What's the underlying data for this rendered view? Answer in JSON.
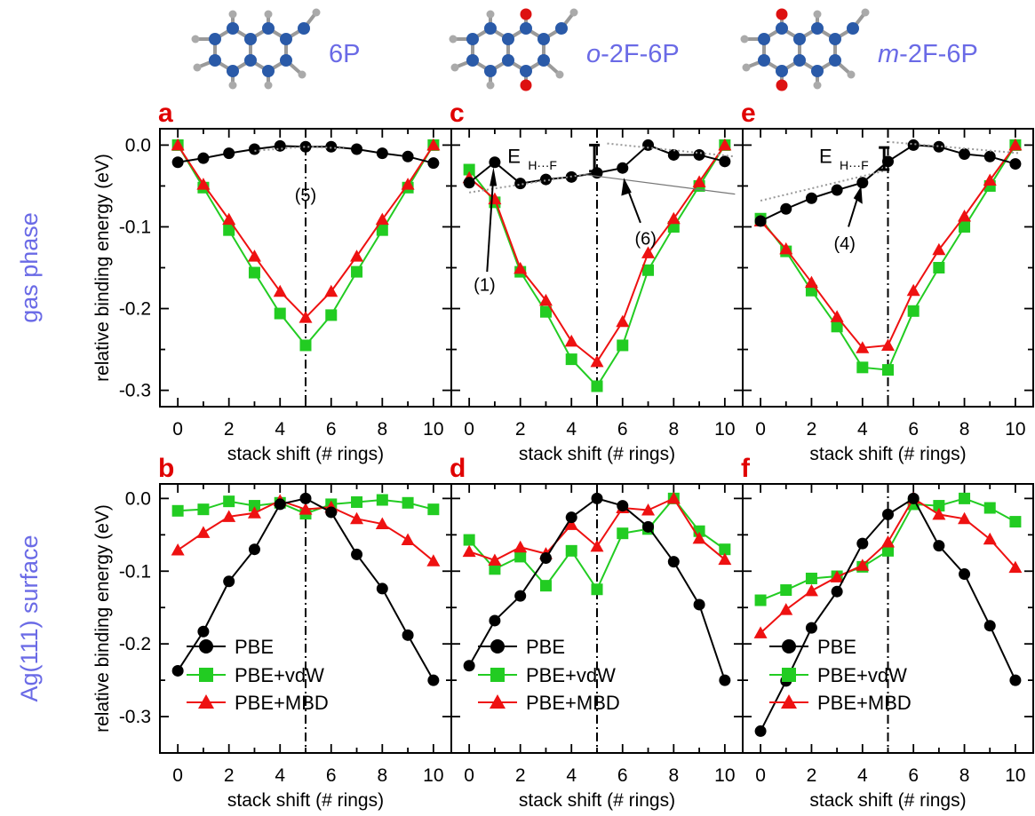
{
  "molecules": [
    {
      "label": "6P",
      "label_italic": "",
      "variant": "6P"
    },
    {
      "label": "-2F-6P",
      "label_italic": "o",
      "variant": "o"
    },
    {
      "label": "-2F-6P",
      "label_italic": "m",
      "variant": "m"
    }
  ],
  "row_labels": [
    "gas phase",
    "Ag(111) surface"
  ],
  "colors": {
    "PBE": "#000000",
    "PBE+vdW": "#22cc22",
    "PBE+MBD": "#ee1111",
    "row_label": "#6a6ae6",
    "panel_letter": "#e00000",
    "atom_C": "#2a5aa8",
    "atom_H": "#aaaaaa",
    "atom_F": "#dd1111"
  },
  "legend": [
    "PBE",
    "PBE+vdW",
    "PBE+MBD"
  ],
  "annotations": {
    "a": [
      "(5)"
    ],
    "c": [
      "(1)",
      "(6)"
    ],
    "e": [
      "(4)"
    ],
    "ehf_main": "E",
    "ehf_sub": "H···F"
  },
  "chart_data": [
    {
      "panel": "a",
      "type": "line",
      "xlabel": "stack shift (# rings)",
      "ylabel": "relative binding energy (eV)",
      "x": [
        0,
        1,
        2,
        3,
        4,
        5,
        6,
        7,
        8,
        9,
        10
      ],
      "xlim": [
        -0.7,
        10.7
      ],
      "ylim": [
        -0.32,
        0.02
      ],
      "xticks": [
        0,
        2,
        4,
        6,
        8,
        10
      ],
      "yticks": [
        0.0,
        -0.1,
        -0.2,
        -0.3
      ],
      "ytick_labels": [
        "0.0",
        "-0.1",
        "-0.2",
        "-0.3"
      ],
      "series": [
        {
          "name": "PBE",
          "values": [
            -0.021,
            -0.016,
            -0.01,
            -0.005,
            -0.001,
            -0.002,
            -0.002,
            -0.005,
            -0.01,
            -0.014,
            -0.022
          ]
        },
        {
          "name": "PBE+vdW",
          "values": [
            0.0,
            -0.052,
            -0.104,
            -0.156,
            -0.206,
            -0.245,
            -0.208,
            -0.155,
            -0.104,
            -0.052,
            0.0
          ]
        },
        {
          "name": "PBE+MBD",
          "values": [
            0.0,
            -0.048,
            -0.091,
            -0.136,
            -0.179,
            -0.211,
            -0.179,
            -0.136,
            -0.091,
            -0.048,
            0.0
          ]
        }
      ]
    },
    {
      "panel": "b",
      "type": "line",
      "xlabel": "stack shift (# rings)",
      "ylabel": "relative binding energy (eV)",
      "x": [
        0,
        1,
        2,
        3,
        4,
        5,
        6,
        7,
        8,
        9,
        10
      ],
      "xlim": [
        -0.7,
        10.7
      ],
      "ylim": [
        -0.35,
        0.02
      ],
      "xticks": [
        0,
        2,
        4,
        6,
        8,
        10
      ],
      "yticks": [
        0.0,
        -0.1,
        -0.2,
        -0.3
      ],
      "ytick_labels": [
        "0.0",
        "-0.1",
        "-0.2",
        "-0.3"
      ],
      "series": [
        {
          "name": "PBE",
          "values": [
            -0.237,
            -0.183,
            -0.114,
            -0.07,
            -0.008,
            0.0,
            -0.019,
            -0.077,
            -0.124,
            -0.188,
            -0.25
          ]
        },
        {
          "name": "PBE+vdW",
          "values": [
            -0.017,
            -0.015,
            -0.004,
            -0.01,
            -0.006,
            -0.021,
            -0.008,
            -0.005,
            -0.002,
            -0.006,
            -0.015
          ]
        },
        {
          "name": "PBE+MBD",
          "values": [
            -0.071,
            -0.047,
            -0.025,
            -0.02,
            -0.003,
            -0.015,
            -0.012,
            -0.028,
            -0.035,
            -0.057,
            -0.086
          ]
        }
      ]
    },
    {
      "panel": "c",
      "type": "line",
      "xlabel": "stack shift (# rings)",
      "ylabel": "",
      "x": [
        0,
        1,
        2,
        3,
        4,
        5,
        6,
        7,
        8,
        9,
        10
      ],
      "xlim": [
        -0.7,
        10.7
      ],
      "ylim": [
        -0.32,
        0.02
      ],
      "xticks": [
        0,
        2,
        4,
        6,
        8,
        10
      ],
      "yticks": [
        0.0,
        -0.1,
        -0.2,
        -0.3
      ],
      "ytick_labels": [],
      "series": [
        {
          "name": "PBE",
          "values": [
            -0.046,
            -0.021,
            -0.047,
            -0.042,
            -0.039,
            -0.034,
            -0.028,
            0.0,
            -0.012,
            -0.012,
            -0.02
          ]
        },
        {
          "name": "PBE+vdW",
          "values": [
            -0.03,
            -0.07,
            -0.155,
            -0.204,
            -0.262,
            -0.295,
            -0.245,
            -0.153,
            -0.1,
            -0.05,
            0.0
          ]
        },
        {
          "name": "PBE+MBD",
          "values": [
            -0.04,
            -0.066,
            -0.151,
            -0.19,
            -0.24,
            -0.265,
            -0.216,
            -0.132,
            -0.09,
            -0.045,
            0.0
          ]
        }
      ]
    },
    {
      "panel": "d",
      "type": "line",
      "xlabel": "stack shift (# rings)",
      "ylabel": "",
      "x": [
        0,
        1,
        2,
        3,
        4,
        5,
        6,
        7,
        8,
        9,
        10
      ],
      "xlim": [
        -0.7,
        10.7
      ],
      "ylim": [
        -0.35,
        0.02
      ],
      "xticks": [
        0,
        2,
        4,
        6,
        8,
        10
      ],
      "yticks": [
        0.0,
        -0.1,
        -0.2,
        -0.3
      ],
      "ytick_labels": [],
      "series": [
        {
          "name": "PBE",
          "values": [
            -0.23,
            -0.168,
            -0.134,
            -0.082,
            -0.026,
            0.0,
            -0.01,
            -0.039,
            -0.087,
            -0.146,
            -0.25
          ]
        },
        {
          "name": "PBE+vdW",
          "values": [
            -0.057,
            -0.097,
            -0.08,
            -0.12,
            -0.072,
            -0.125,
            -0.048,
            -0.042,
            0.0,
            -0.045,
            -0.07
          ]
        },
        {
          "name": "PBE+MBD",
          "values": [
            -0.073,
            -0.085,
            -0.067,
            -0.076,
            -0.036,
            -0.066,
            -0.013,
            -0.016,
            0.0,
            -0.055,
            -0.084
          ]
        }
      ]
    },
    {
      "panel": "e",
      "type": "line",
      "xlabel": "stack shift (# rings)",
      "ylabel": "",
      "x": [
        0,
        1,
        2,
        3,
        4,
        5,
        6,
        7,
        8,
        9,
        10
      ],
      "xlim": [
        -0.7,
        10.7
      ],
      "ylim": [
        -0.32,
        0.02
      ],
      "xticks": [
        0,
        2,
        4,
        6,
        8,
        10
      ],
      "yticks": [
        0.0,
        -0.1,
        -0.2,
        -0.3
      ],
      "ytick_labels": [],
      "series": [
        {
          "name": "PBE",
          "values": [
            -0.093,
            -0.078,
            -0.065,
            -0.055,
            -0.046,
            -0.02,
            0.0,
            -0.002,
            -0.011,
            -0.014,
            -0.023
          ]
        },
        {
          "name": "PBE+vdW",
          "values": [
            -0.09,
            -0.13,
            -0.178,
            -0.222,
            -0.272,
            -0.275,
            -0.203,
            -0.15,
            -0.1,
            -0.05,
            0.0
          ]
        },
        {
          "name": "PBE+MBD",
          "values": [
            -0.093,
            -0.127,
            -0.168,
            -0.21,
            -0.248,
            -0.245,
            -0.178,
            -0.128,
            -0.087,
            -0.043,
            0.0
          ]
        }
      ]
    },
    {
      "panel": "f",
      "type": "line",
      "xlabel": "stack shift (# rings)",
      "ylabel": "",
      "x": [
        0,
        1,
        2,
        3,
        4,
        5,
        6,
        7,
        8,
        9,
        10
      ],
      "xlim": [
        -0.7,
        10.7
      ],
      "ylim": [
        -0.35,
        0.02
      ],
      "xticks": [
        0,
        2,
        4,
        6,
        8,
        10
      ],
      "yticks": [
        0.0,
        -0.1,
        -0.2,
        -0.3
      ],
      "ytick_labels": [],
      "series": [
        {
          "name": "PBE",
          "values": [
            -0.32,
            -0.251,
            -0.178,
            -0.128,
            -0.062,
            -0.022,
            0.0,
            -0.065,
            -0.104,
            -0.175,
            -0.25
          ]
        },
        {
          "name": "PBE+vdW",
          "values": [
            -0.14,
            -0.126,
            -0.11,
            -0.107,
            -0.094,
            -0.072,
            -0.008,
            -0.01,
            0.0,
            -0.013,
            -0.032
          ]
        },
        {
          "name": "PBE+MBD",
          "values": [
            -0.185,
            -0.153,
            -0.127,
            -0.108,
            -0.092,
            -0.06,
            0.0,
            -0.022,
            -0.028,
            -0.056,
            -0.095
          ]
        }
      ]
    }
  ]
}
